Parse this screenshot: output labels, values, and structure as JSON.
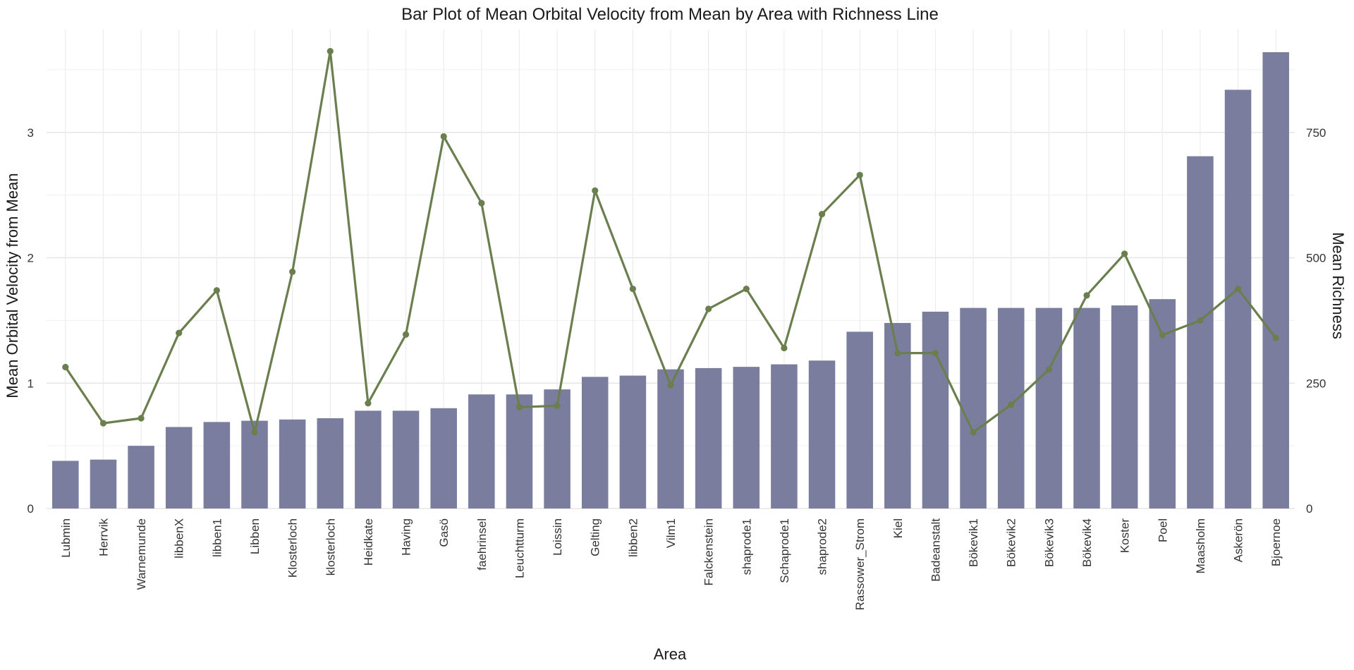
{
  "chart_data": {
    "type": "bar",
    "title": "Bar Plot of Mean Orbital Velocity from Mean by Area with Richness Line",
    "xlabel": "Area",
    "ylabel": "Mean Orbital Velocity from Mean",
    "y2label": "Mean Richness",
    "ylim": [
      0,
      3.82
    ],
    "y2lim": [
      0,
      955
    ],
    "yticks": [
      0,
      1,
      2,
      3
    ],
    "y2ticks": [
      0,
      250,
      500,
      750
    ],
    "grid": true,
    "legend": "none",
    "categories": [
      "Lubmin",
      "Herrvik",
      "Warnemunde",
      "libbenX",
      "libben1",
      "Libben",
      "Klosterloch",
      "klosterloch",
      "Heidkate",
      "Having",
      "Gasö",
      "faehrinsel",
      "Leuchtturm",
      "Loissin",
      "Gelting",
      "libben2",
      "Vilm1",
      "Falckenstein",
      "shaprode1",
      "Schaprode1",
      "shaprode2",
      "Rassower_Strom",
      "Kiel",
      "Badeanstalt",
      "Bökevik1",
      "Bökevik2",
      "Bökevik3",
      "Bökevik4",
      "Koster",
      "Poel",
      "Maasholm",
      "Askerön",
      "Bjoernoe"
    ],
    "series": [
      {
        "type": "bar",
        "axis": "left",
        "color": "#7a7d9e",
        "values": [
          0.38,
          0.39,
          0.5,
          0.65,
          0.69,
          0.7,
          0.71,
          0.72,
          0.78,
          0.78,
          0.8,
          0.91,
          0.91,
          0.95,
          1.05,
          1.06,
          1.11,
          1.12,
          1.13,
          1.15,
          1.18,
          1.41,
          1.48,
          1.57,
          1.6,
          1.6,
          1.6,
          1.6,
          1.62,
          1.67,
          2.81,
          3.34,
          3.64
        ]
      },
      {
        "type": "line",
        "axis": "right",
        "color": "#6b7f4e",
        "values": [
          282,
          170,
          180,
          350,
          435,
          152,
          472,
          912,
          210,
          347,
          742,
          609,
          202,
          205,
          634,
          438,
          246,
          398,
          438,
          320,
          587,
          665,
          310,
          310,
          152,
          207,
          277,
          425,
          508,
          346,
          375,
          438,
          340
        ]
      }
    ]
  }
}
